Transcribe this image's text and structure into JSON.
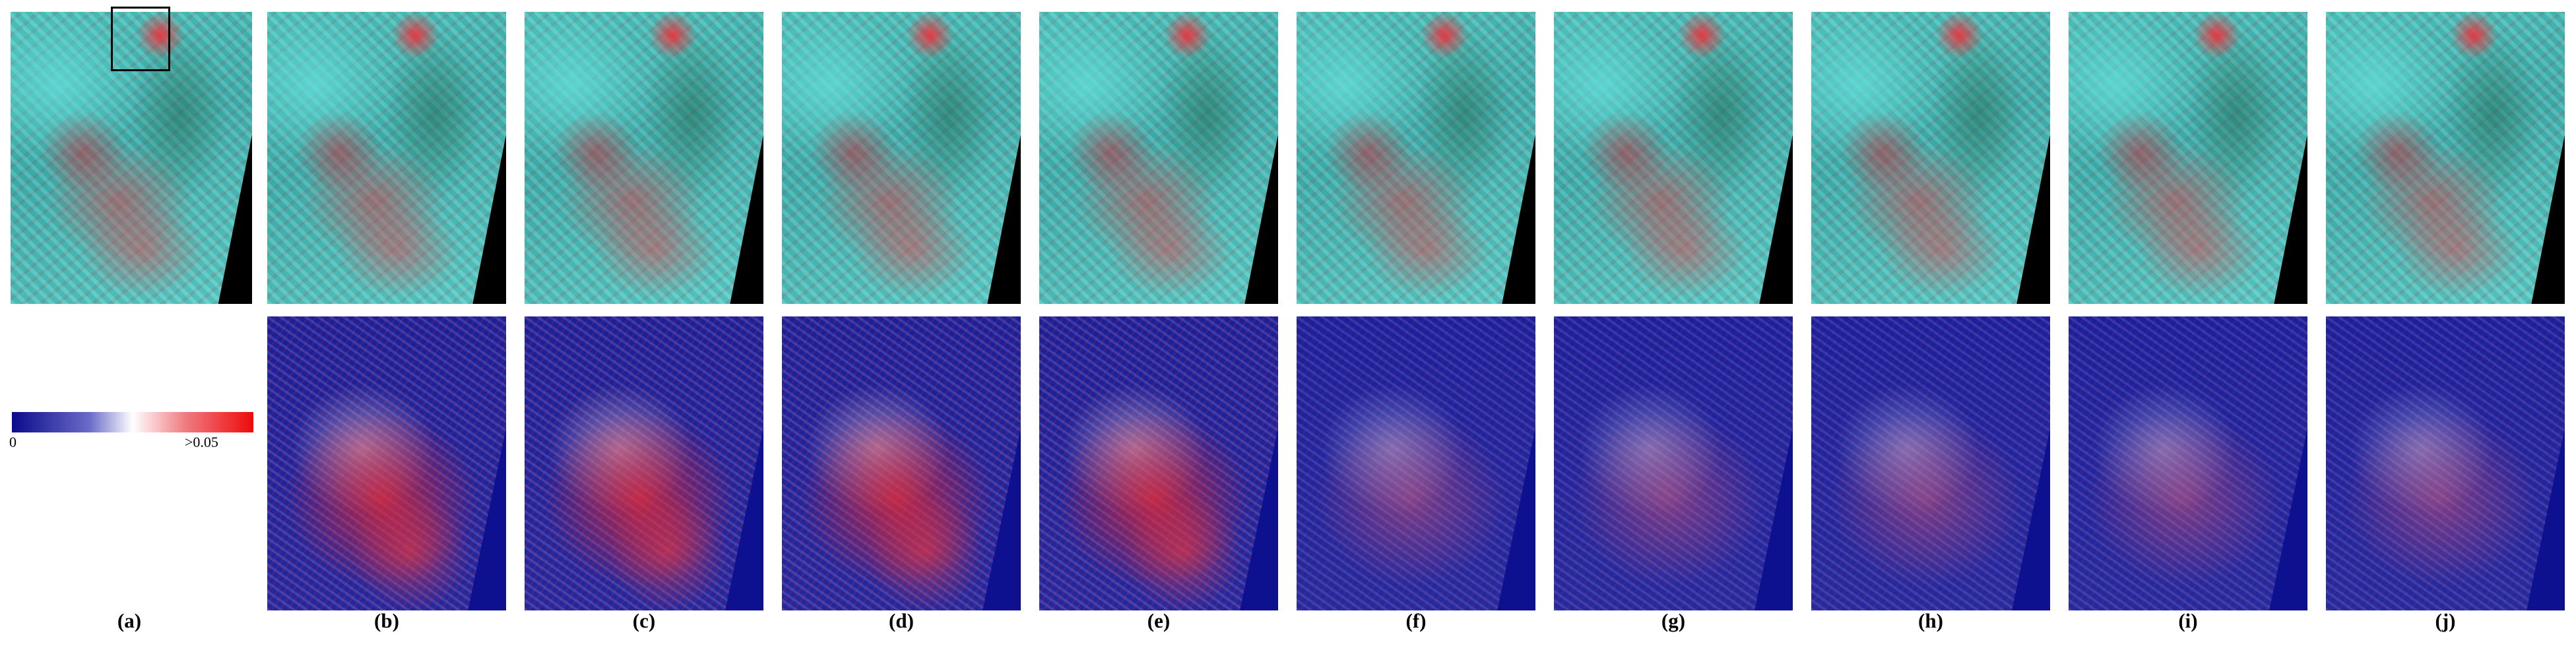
{
  "colorbar": {
    "min_label": "0",
    "max_label": ">0.05",
    "colors": [
      "#0b0b8c",
      "#ffffff",
      "#ee0a0a"
    ]
  },
  "panels": [
    {
      "label": "(a)"
    },
    {
      "label": "(b)"
    },
    {
      "label": "(c)"
    },
    {
      "label": "(d)"
    },
    {
      "label": "(e)"
    },
    {
      "label": "(f)"
    },
    {
      "label": "(g)"
    },
    {
      "label": "(h)"
    },
    {
      "label": "(i)"
    },
    {
      "label": "(j)"
    }
  ]
}
